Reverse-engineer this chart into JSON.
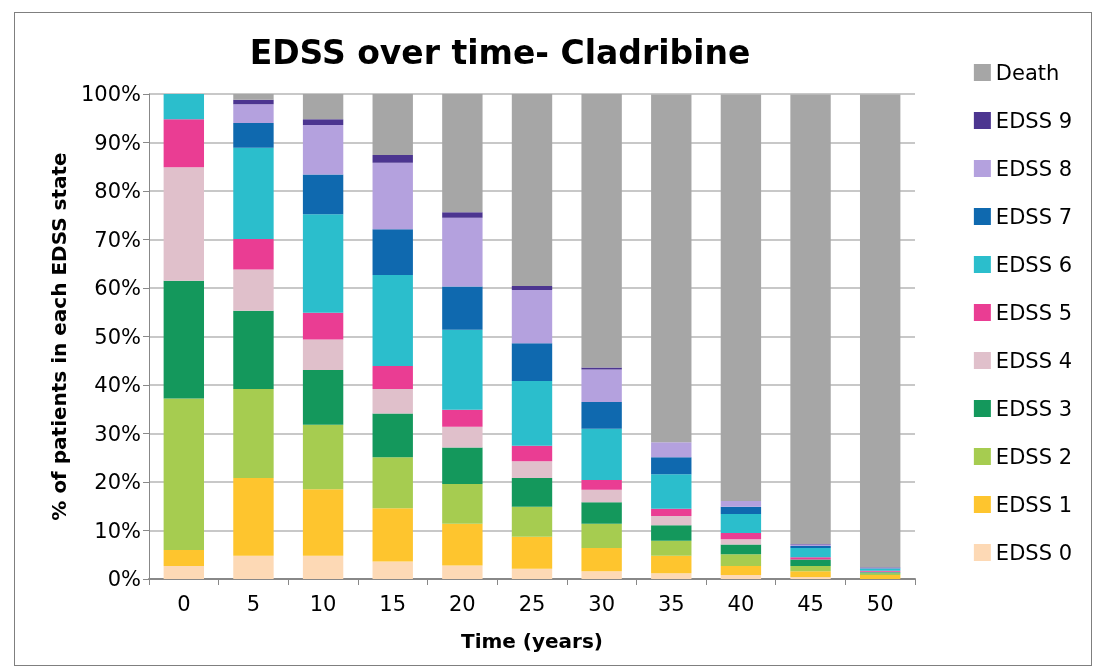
{
  "chart_data": {
    "type": "bar",
    "title": "EDSS over time- Cladribine",
    "xlabel": "Time (years)",
    "ylabel": "% of patients in each EDSS state",
    "stacked": true,
    "grid": "y",
    "legend": "right",
    "categories": [
      "0",
      "5",
      "10",
      "15",
      "20",
      "25",
      "30",
      "35",
      "40",
      "45",
      "50"
    ],
    "ylim": [
      0,
      100
    ],
    "yticks": [
      {
        "value": 0,
        "label": "0%"
      },
      {
        "value": 10,
        "label": "10%"
      },
      {
        "value": 20,
        "label": "20%"
      },
      {
        "value": 30,
        "label": "30%"
      },
      {
        "value": 40,
        "label": "40%"
      },
      {
        "value": 50,
        "label": "50%"
      },
      {
        "value": 60,
        "label": "60%"
      },
      {
        "value": 70,
        "label": "70%"
      },
      {
        "value": 80,
        "label": "80%"
      },
      {
        "value": 90,
        "label": "90%"
      },
      {
        "value": 100,
        "label": "100%"
      }
    ],
    "series": [
      {
        "name": "EDSS 0",
        "color": "#fdd9b5",
        "values": [
          2.7,
          4.8,
          4.8,
          3.6,
          2.8,
          2.1,
          1.6,
          1.2,
          0.8,
          0.4,
          null
        ]
      },
      {
        "name": "EDSS 1",
        "color": "#fec52e",
        "values": [
          3.3,
          16,
          13.7,
          11,
          8.6,
          6.6,
          4.8,
          3.6,
          1.9,
          1.2,
          0.8
        ]
      },
      {
        "name": "EDSS 2",
        "color": "#a6cc50",
        "values": [
          31.2,
          18.4,
          13.3,
          10.5,
          8.2,
          6.2,
          5,
          3.1,
          2.4,
          1.1,
          0.4
        ]
      },
      {
        "name": "EDSS 3",
        "color": "#14985c",
        "values": [
          24.3,
          16.1,
          11.3,
          9,
          7.5,
          5.9,
          4.4,
          3.2,
          2,
          1.3,
          0.2
        ]
      },
      {
        "name": "EDSS 4",
        "color": "#e0c0cb",
        "values": [
          23.4,
          8.5,
          6.3,
          5.1,
          4.3,
          3.5,
          2.6,
          1.9,
          1.1,
          null,
          0.1
        ]
      },
      {
        "name": "EDSS 5",
        "color": "#ea3d93",
        "values": [
          9.9,
          6.3,
          5.5,
          4.7,
          3.5,
          3.2,
          2,
          1.5,
          1.3,
          0.5,
          0.2
        ]
      },
      {
        "name": "EDSS 6",
        "color": "#2bbecc",
        "values": [
          5.2,
          18.8,
          20.3,
          18.8,
          16.5,
          13.3,
          10.6,
          7.1,
          3.9,
          1.9,
          0.4
        ]
      },
      {
        "name": "EDSS 7",
        "color": "#0f69af",
        "values": [
          0,
          5.1,
          8.2,
          9.4,
          8.9,
          7.8,
          5.5,
          3.5,
          1.5,
          0.4,
          0.1
        ]
      },
      {
        "name": "EDSS 8",
        "color": "#b4a1de",
        "values": [
          0,
          3.9,
          10.2,
          13.7,
          14.2,
          11,
          6.7,
          3.1,
          1.2,
          0.3,
          0.1
        ]
      },
      {
        "name": "EDSS 9",
        "color": "#4c3590",
        "values": [
          0,
          0.9,
          1.2,
          1.6,
          1.1,
          0.8,
          0.4,
          null,
          null,
          0.1,
          0.1
        ]
      },
      {
        "name": "Death",
        "color": "#a6a6a6",
        "values": [
          0,
          1.2,
          5.2,
          12.6,
          24.4,
          39.6,
          56.4,
          71.7,
          83.8,
          92.7,
          97.5
        ]
      }
    ]
  }
}
